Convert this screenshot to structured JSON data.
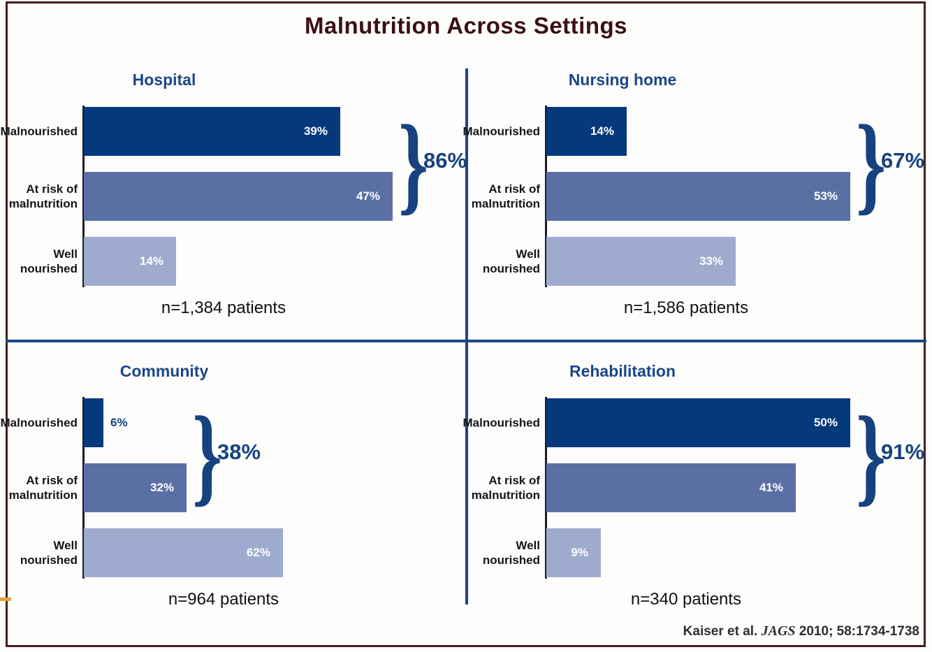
{
  "page_title": "Malnutrition Across Settings",
  "citation": {
    "authors": "Kaiser et al.",
    "journal_italic": "JAGS",
    "details": "2010; 58:1734-1738"
  },
  "colors": {
    "title_maroon": "#3c0f12",
    "frame_maroon": "#43201f",
    "divider_blue": "#1c4585",
    "accent_blue": "#17427f",
    "bar_navy": "#04397c",
    "bar_medium_blue": "#5a70a5",
    "bar_light_blue": "#9fabce",
    "bar_label_white": "#ffffff",
    "category_text": "#151515"
  },
  "chart_data": [
    {
      "type": "bar",
      "orientation": "horizontal",
      "setting": "Hospital",
      "categories": [
        "Malnourished",
        "At risk of malnutrition",
        "Well nourished"
      ],
      "category_lines": [
        [
          "Malnourished"
        ],
        [
          "At risk of",
          "malnutrition"
        ],
        [
          "Well",
          "nourished"
        ]
      ],
      "values": [
        39,
        47,
        14
      ],
      "bar_labels": [
        "39%",
        "47%",
        "14%"
      ],
      "combined": {
        "label": "86%",
        "value": 86,
        "spans": [
          "Malnourished",
          "At risk of malnutrition"
        ]
      },
      "sample_label": "n=1,384 patients",
      "xlim": [
        0,
        100
      ],
      "grid": false
    },
    {
      "type": "bar",
      "orientation": "horizontal",
      "setting": "Nursing home",
      "categories": [
        "Malnourished",
        "At risk of malnutrition",
        "Well nourished"
      ],
      "category_lines": [
        [
          "Malnourished"
        ],
        [
          "At risk of",
          "malnutrition"
        ],
        [
          "Well",
          "nourished"
        ]
      ],
      "values": [
        14,
        53,
        33
      ],
      "bar_labels": [
        "14%",
        "53%",
        "33%"
      ],
      "combined": {
        "label": "67%",
        "value": 67,
        "spans": [
          "Malnourished",
          "At risk of malnutrition"
        ]
      },
      "sample_label": "n=1,586 patients",
      "xlim": [
        0,
        100
      ],
      "grid": false
    },
    {
      "type": "bar",
      "orientation": "horizontal",
      "setting": "Community",
      "categories": [
        "Malnourished",
        "At risk of malnutrition",
        "Well nourished"
      ],
      "category_lines": [
        [
          "Malnourished"
        ],
        [
          "At risk of",
          "malnutrition"
        ],
        [
          "Well",
          "nourished"
        ]
      ],
      "values": [
        6,
        32,
        62
      ],
      "bar_labels": [
        "6%",
        "32%",
        "62%"
      ],
      "combined": {
        "label": "38%",
        "value": 38,
        "spans": [
          "Malnourished",
          "At risk of malnutrition"
        ]
      },
      "sample_label": "n=964 patients",
      "xlim": [
        0,
        100
      ],
      "grid": false
    },
    {
      "type": "bar",
      "orientation": "horizontal",
      "setting": "Rehabilitation",
      "categories": [
        "Malnourished",
        "At risk of malnutrition",
        "Well nourished"
      ],
      "category_lines": [
        [
          "Malnourished"
        ],
        [
          "At risk of",
          "malnutrition"
        ],
        [
          "Well",
          "nourished"
        ]
      ],
      "values": [
        50,
        41,
        9
      ],
      "bar_labels": [
        "50%",
        "41%",
        "9%"
      ],
      "combined": {
        "label": "91%",
        "value": 91,
        "spans": [
          "Malnourished",
          "At risk of malnutrition"
        ]
      },
      "sample_label": "n=340 patients",
      "xlim": [
        0,
        100
      ],
      "grid": false
    }
  ]
}
